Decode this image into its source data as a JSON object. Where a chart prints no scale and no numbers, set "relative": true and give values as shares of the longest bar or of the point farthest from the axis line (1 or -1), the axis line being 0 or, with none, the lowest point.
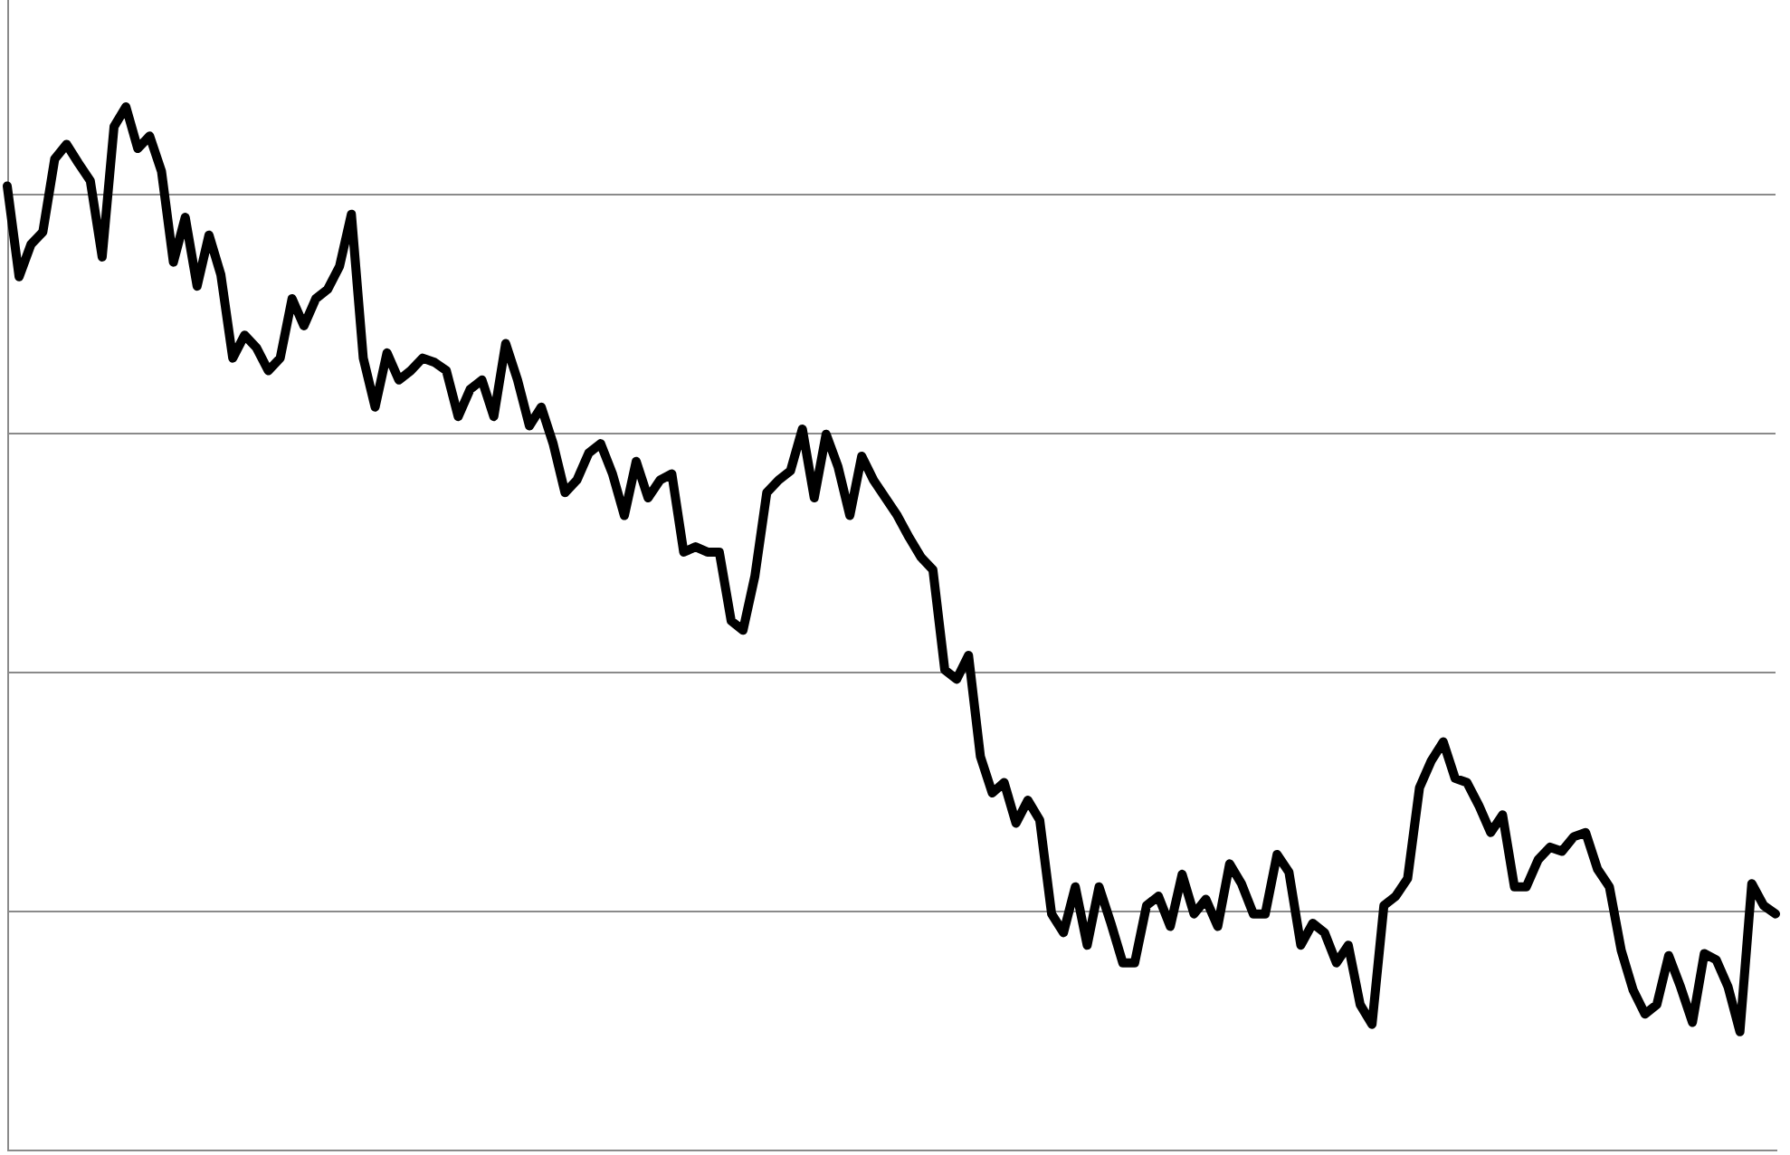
{
  "chart_data": {
    "type": "line",
    "relative": true,
    "grid": "y",
    "color": "#000000",
    "categories": [
      null,
      null,
      null,
      null,
      null,
      null,
      null,
      null,
      null,
      null,
      null,
      null,
      null,
      null,
      null,
      null,
      null,
      null,
      null,
      null,
      null,
      null,
      null,
      null,
      null,
      null,
      null,
      null,
      null,
      null,
      null,
      null,
      null,
      null,
      null,
      null,
      null,
      null,
      null,
      null,
      null,
      null,
      null,
      null,
      null,
      null,
      null,
      null,
      null,
      null,
      null,
      null,
      null,
      null,
      null,
      null,
      null,
      null,
      null,
      null,
      null,
      null,
      null,
      null,
      null,
      null,
      null,
      null,
      null,
      null,
      null,
      null,
      null,
      null,
      null,
      null,
      null,
      null,
      null,
      null,
      null,
      null,
      null,
      null,
      null,
      null,
      null,
      null,
      null,
      null,
      null,
      null,
      null,
      null,
      null,
      null,
      null,
      null,
      null,
      null,
      null,
      null,
      null,
      null,
      null,
      null,
      null,
      null,
      null,
      null,
      null,
      null,
      null,
      null,
      null,
      null,
      null,
      null,
      null,
      null,
      null,
      null,
      null,
      null,
      null,
      null,
      null,
      null,
      null,
      null,
      null,
      null,
      null,
      null,
      null,
      null,
      null,
      null,
      null,
      null,
      null,
      null,
      null,
      null,
      null,
      null,
      null,
      null,
      null,
      null
    ],
    "values": [
      0.924,
      0.837,
      0.868,
      0.88,
      0.95,
      0.964,
      0.946,
      0.929,
      0.856,
      0.981,
      1.0,
      0.96,
      0.972,
      0.938,
      0.851,
      0.894,
      0.828,
      0.877,
      0.839,
      0.759,
      0.781,
      0.769,
      0.747,
      0.759,
      0.816,
      0.79,
      0.816,
      0.825,
      0.847,
      0.897,
      0.759,
      0.712,
      0.764,
      0.738,
      0.747,
      0.759,
      0.755,
      0.747,
      0.703,
      0.729,
      0.738,
      0.703,
      0.773,
      0.738,
      0.694,
      0.712,
      0.677,
      0.63,
      0.642,
      0.668,
      0.677,
      0.648,
      0.608,
      0.66,
      0.625,
      0.642,
      0.648,
      0.573,
      0.578,
      0.573,
      0.573,
      0.507,
      0.498,
      0.55,
      0.63,
      0.642,
      0.651,
      0.691,
      0.625,
      0.686,
      0.655,
      0.608,
      0.665,
      0.642,
      0.625,
      0.608,
      0.587,
      0.568,
      0.556,
      0.46,
      0.451,
      0.474,
      0.377,
      0.342,
      0.352,
      0.313,
      0.335,
      0.316,
      0.226,
      0.208,
      0.252,
      0.196,
      0.252,
      0.217,
      0.179,
      0.179,
      0.234,
      0.243,
      0.214,
      0.264,
      0.226,
      0.24,
      0.214,
      0.274,
      0.255,
      0.226,
      0.226,
      0.283,
      0.266,
      0.196,
      0.217,
      0.208,
      0.179,
      0.196,
      0.139,
      0.12,
      0.234,
      0.243,
      0.26,
      0.347,
      0.373,
      0.391,
      0.356,
      0.352,
      0.33,
      0.304,
      0.321,
      0.252,
      0.252,
      0.278,
      0.29,
      0.286,
      0.3,
      0.304,
      0.269,
      0.252,
      0.191,
      0.153,
      0.13,
      0.139,
      0.186,
      0.156,
      0.122,
      0.188,
      0.182,
      0.156,
      0.113,
      0.255,
      0.234,
      0.226
    ]
  }
}
